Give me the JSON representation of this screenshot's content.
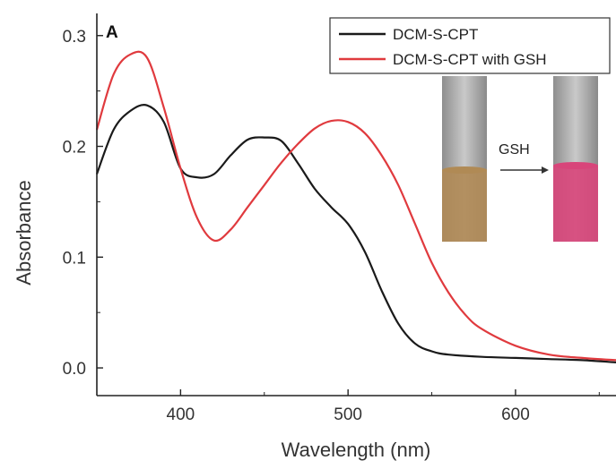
{
  "chart_data": {
    "type": "line",
    "panel_label": "A",
    "xlabel": "Wavelength (nm)",
    "ylabel": "Absorbance",
    "xlim": [
      350,
      660
    ],
    "ylim": [
      -0.025,
      0.32
    ],
    "xticks": [
      400,
      500,
      600
    ],
    "xtick_labels": [
      "400",
      "500",
      "600"
    ],
    "yticks": [
      0.0,
      0.1,
      0.2,
      0.3
    ],
    "ytick_labels": [
      "0.0",
      "0.1",
      "0.2",
      "0.3"
    ],
    "legend": {
      "placement": "top-right"
    },
    "series": [
      {
        "name": "DCM-S-CPT",
        "color": "#1a1a1a",
        "x": [
          350,
          360,
          370,
          380,
          390,
          400,
          410,
          420,
          430,
          440,
          450,
          460,
          470,
          480,
          490,
          500,
          510,
          520,
          530,
          540,
          550,
          560,
          580,
          600,
          620,
          640,
          660
        ],
        "y": [
          0.175,
          0.215,
          0.232,
          0.237,
          0.222,
          0.18,
          0.172,
          0.175,
          0.192,
          0.206,
          0.208,
          0.205,
          0.185,
          0.162,
          0.145,
          0.13,
          0.105,
          0.07,
          0.04,
          0.022,
          0.015,
          0.012,
          0.01,
          0.009,
          0.008,
          0.007,
          0.005
        ]
      },
      {
        "name": "DCM-S-CPT with GSH",
        "color": "#e03a3e",
        "x": [
          350,
          360,
          370,
          380,
          390,
          400,
          410,
          420,
          430,
          440,
          450,
          460,
          470,
          480,
          490,
          500,
          510,
          520,
          530,
          540,
          550,
          560,
          570,
          580,
          600,
          620,
          640,
          660
        ],
        "y": [
          0.215,
          0.265,
          0.283,
          0.28,
          0.235,
          0.18,
          0.135,
          0.115,
          0.125,
          0.145,
          0.165,
          0.185,
          0.202,
          0.216,
          0.223,
          0.222,
          0.212,
          0.192,
          0.165,
          0.13,
          0.095,
          0.068,
          0.048,
          0.035,
          0.02,
          0.012,
          0.009,
          0.007
        ]
      }
    ],
    "inset": {
      "arrow_label": "GSH",
      "before_solution_color": "#b08a55",
      "after_solution_color": "#d8457a"
    }
  }
}
